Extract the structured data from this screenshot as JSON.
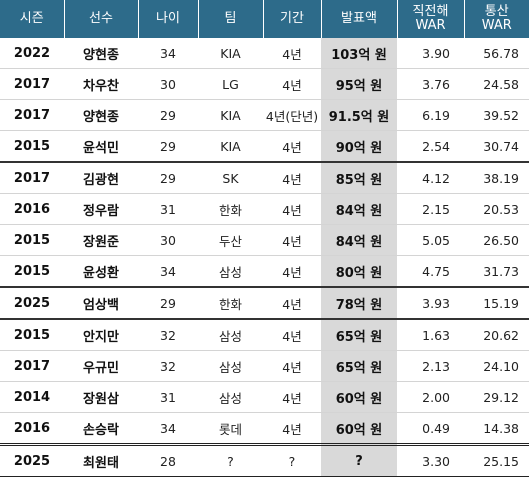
{
  "headers": {
    "season": "시즌",
    "player": "선수",
    "age": "나이",
    "team": "팀",
    "period": "기간",
    "amount": "발표액",
    "prev_war_line1": "직전해",
    "prev_war_line2": "WAR",
    "total_war_line1": "통산",
    "total_war_line2": "WAR"
  },
  "rows": [
    {
      "season": "2022",
      "player": "양현종",
      "age": "34",
      "team": "KIA",
      "period": "4년",
      "amount": "103억 원",
      "prev_war": "3.90",
      "total_war": "56.78"
    },
    {
      "season": "2017",
      "player": "차우찬",
      "age": "30",
      "team": "LG",
      "period": "4년",
      "amount": "95억 원",
      "prev_war": "3.76",
      "total_war": "24.58"
    },
    {
      "season": "2017",
      "player": "양현종",
      "age": "29",
      "team": "KIA",
      "period": "4년(단년)",
      "amount": "91.5억 원",
      "prev_war": "6.19",
      "total_war": "39.52"
    },
    {
      "season": "2015",
      "player": "윤석민",
      "age": "29",
      "team": "KIA",
      "period": "4년",
      "amount": "90억 원",
      "prev_war": "2.54",
      "total_war": "30.74"
    },
    {
      "season": "2017",
      "player": "김광현",
      "age": "29",
      "team": "SK",
      "period": "4년",
      "amount": "85억 원",
      "prev_war": "4.12",
      "total_war": "38.19"
    },
    {
      "season": "2016",
      "player": "정우람",
      "age": "31",
      "team": "한화",
      "period": "4년",
      "amount": "84억 원",
      "prev_war": "2.15",
      "total_war": "20.53"
    },
    {
      "season": "2015",
      "player": "장원준",
      "age": "30",
      "team": "두산",
      "period": "4년",
      "amount": "84억 원",
      "prev_war": "5.05",
      "total_war": "26.50"
    },
    {
      "season": "2015",
      "player": "윤성환",
      "age": "34",
      "team": "삼성",
      "period": "4년",
      "amount": "80억 원",
      "prev_war": "4.75",
      "total_war": "31.73"
    },
    {
      "season": "2025",
      "player": "엄상백",
      "age": "29",
      "team": "한화",
      "period": "4년",
      "amount": "78억 원",
      "prev_war": "3.93",
      "total_war": "15.19"
    },
    {
      "season": "2015",
      "player": "안지만",
      "age": "32",
      "team": "삼성",
      "period": "4년",
      "amount": "65억 원",
      "prev_war": "1.63",
      "total_war": "20.62"
    },
    {
      "season": "2017",
      "player": "우규민",
      "age": "32",
      "team": "삼성",
      "period": "4년",
      "amount": "65억 원",
      "prev_war": "2.13",
      "total_war": "24.10"
    },
    {
      "season": "2014",
      "player": "장원삼",
      "age": "31",
      "team": "삼성",
      "period": "4년",
      "amount": "60억 원",
      "prev_war": "2.00",
      "total_war": "29.12"
    },
    {
      "season": "2016",
      "player": "손승락",
      "age": "34",
      "team": "롯데",
      "period": "4년",
      "amount": "60억 원",
      "prev_war": "0.49",
      "total_war": "14.38"
    },
    {
      "season": "2025",
      "player": "최원태",
      "age": "28",
      "team": "?",
      "period": "?",
      "amount": "?",
      "prev_war": "3.30",
      "total_war": "25.15"
    }
  ]
}
